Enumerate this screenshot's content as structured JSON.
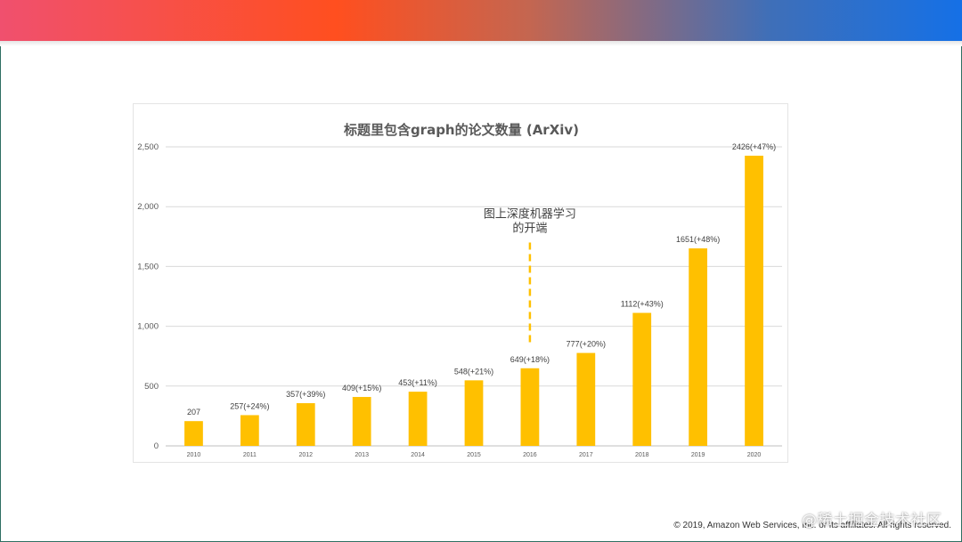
{
  "chart_data": {
    "type": "bar",
    "title": "标题里包含graph的论文数量 (ArXiv)",
    "categories": [
      "2010",
      "2011",
      "2012",
      "2013",
      "2014",
      "2015",
      "2016",
      "2017",
      "2018",
      "2019",
      "2020"
    ],
    "values": [
      207,
      257,
      357,
      409,
      453,
      548,
      649,
      777,
      1112,
      1651,
      2426
    ],
    "data_labels": [
      "207",
      "257(+24%)",
      "357(+39%)",
      "409(+15%)",
      "453(+11%)",
      "548(+21%)",
      "649(+18%)",
      "777(+20%)",
      "1112(+43%)",
      "1651(+48%)",
      "2426(+47%)"
    ],
    "ylim": [
      0,
      2500
    ],
    "yticks": [
      0,
      500,
      1000,
      1500,
      2000,
      2500
    ],
    "ytick_labels": [
      "0",
      "500",
      "1,000",
      "1,500",
      "2,000",
      "2,500"
    ],
    "grid": true,
    "bar_color": "#ffc000",
    "annotation": {
      "lines": [
        "图上深度机器学习",
        "的开端"
      ],
      "x_category": "2016",
      "y_from": 860,
      "y_to": 1700
    }
  },
  "footer": {
    "copyright": "© 2019, Amazon Web Services, Inc. or its affiliates. All rights reserved.",
    "watermark": "@稀土掘金技术社区"
  },
  "colors": {
    "accent": "#ffc000",
    "grid": "#d9d9d9",
    "title": "#595959"
  }
}
